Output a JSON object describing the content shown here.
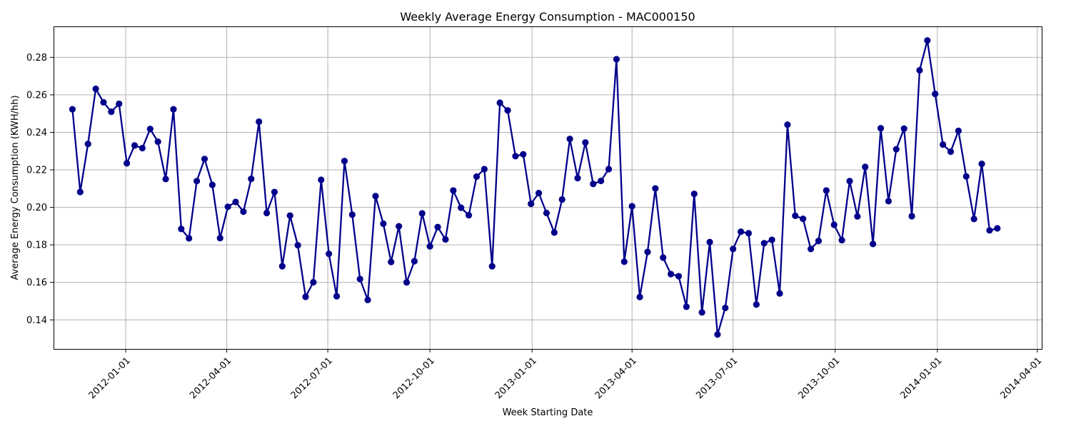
{
  "chart_data": {
    "type": "line",
    "title": "Weekly Average Energy Consumption - MAC000150",
    "xlabel": "Week Starting Date",
    "ylabel": "Average Energy Consumption (KWH/hh)",
    "grid": true,
    "x_tick_labels": [
      "2012-01-01",
      "2012-04-01",
      "2012-07-01",
      "2012-10-01",
      "2013-01-01",
      "2013-04-01",
      "2013-07-01",
      "2013-10-01",
      "2014-01-01",
      "2014-04-01"
    ],
    "y_ticks": [
      0.14,
      0.16,
      0.18,
      0.2,
      0.22,
      0.24,
      0.26,
      0.28
    ],
    "y_tick_labels": [
      "0.14",
      "0.16",
      "0.18",
      "0.20",
      "0.22",
      "0.24",
      "0.26",
      "0.28"
    ],
    "xlim": [
      "2011-10-28",
      "2014-04-05"
    ],
    "ylim": [
      0.1245,
      0.2965
    ],
    "colors": {
      "line": "#00008b",
      "marker": "#00008b"
    },
    "series": [
      {
        "x": [
          "2011-11-14",
          "2011-11-21",
          "2011-11-28",
          "2011-12-05",
          "2011-12-12",
          "2011-12-19",
          "2011-12-26",
          "2012-01-02",
          "2012-01-09",
          "2012-01-16",
          "2012-01-23",
          "2012-01-30",
          "2012-02-06",
          "2012-02-13",
          "2012-02-20",
          "2012-02-27",
          "2012-03-05",
          "2012-03-12",
          "2012-03-19",
          "2012-03-26",
          "2012-04-02",
          "2012-04-09",
          "2012-04-16",
          "2012-04-23",
          "2012-04-30",
          "2012-05-07",
          "2012-05-14",
          "2012-05-21",
          "2012-05-28",
          "2012-06-04",
          "2012-06-11",
          "2012-06-18",
          "2012-06-25",
          "2012-07-02",
          "2012-07-09",
          "2012-07-16",
          "2012-07-23",
          "2012-07-30",
          "2012-08-06",
          "2012-08-13",
          "2012-08-20",
          "2012-08-27",
          "2012-09-03",
          "2012-09-10",
          "2012-09-17",
          "2012-09-24",
          "2012-10-01",
          "2012-10-08",
          "2012-10-15",
          "2012-10-22",
          "2012-10-29",
          "2012-11-05",
          "2012-11-12",
          "2012-11-19",
          "2012-11-26",
          "2012-12-03",
          "2012-12-10",
          "2012-12-17",
          "2012-12-24",
          "2012-12-31",
          "2013-01-07",
          "2013-01-14",
          "2013-01-21",
          "2013-01-28",
          "2013-02-04",
          "2013-02-11",
          "2013-02-18",
          "2013-02-25",
          "2013-03-04",
          "2013-03-11",
          "2013-03-18",
          "2013-03-25",
          "2013-04-01",
          "2013-04-08",
          "2013-04-15",
          "2013-04-22",
          "2013-04-29",
          "2013-05-06",
          "2013-05-13",
          "2013-05-20",
          "2013-05-27",
          "2013-06-03",
          "2013-06-10",
          "2013-06-17",
          "2013-06-24",
          "2013-07-01",
          "2013-07-08",
          "2013-07-15",
          "2013-07-22",
          "2013-07-29",
          "2013-08-05",
          "2013-08-12",
          "2013-08-19",
          "2013-08-26",
          "2013-09-02",
          "2013-09-09",
          "2013-09-16",
          "2013-09-23",
          "2013-09-30",
          "2013-10-07",
          "2013-10-14",
          "2013-10-21",
          "2013-10-28",
          "2013-11-04",
          "2013-11-11",
          "2013-11-18",
          "2013-11-25",
          "2013-12-02",
          "2013-12-09",
          "2013-12-16",
          "2013-12-23",
          "2013-12-30",
          "2014-01-06",
          "2014-01-13",
          "2014-01-20",
          "2014-01-27",
          "2014-02-03",
          "2014-02-10",
          "2014-02-17",
          "2014-02-24"
        ],
        "y": [
          0.2523,
          0.2082,
          0.2338,
          0.2632,
          0.256,
          0.251,
          0.2552,
          0.2235,
          0.233,
          0.2316,
          0.2418,
          0.235,
          0.2151,
          0.2523,
          0.1885,
          0.1835,
          0.214,
          0.2258,
          0.212,
          0.1836,
          0.2003,
          0.2029,
          0.1977,
          0.2152,
          0.2457,
          0.197,
          0.2082,
          0.1686,
          0.1956,
          0.1798,
          0.1523,
          0.1601,
          0.2147,
          0.1752,
          0.1526,
          0.2247,
          0.1961,
          0.1618,
          0.1506,
          0.206,
          0.1913,
          0.1709,
          0.1899,
          0.16,
          0.1713,
          0.1968,
          0.1792,
          0.1895,
          0.1829,
          0.209,
          0.1998,
          0.1958,
          0.2164,
          0.2204,
          0.1686,
          0.2558,
          0.2517,
          0.2273,
          0.2283,
          0.2019,
          0.2076,
          0.197,
          0.1866,
          0.2042,
          0.2365,
          0.2156,
          0.2346,
          0.2125,
          0.2141,
          0.2204,
          0.279,
          0.171,
          0.2006,
          0.1522,
          0.1762,
          0.2101,
          0.1732,
          0.1644,
          0.1633,
          0.147,
          0.2072,
          0.144,
          0.1815,
          0.1322,
          0.1464,
          0.1778,
          0.187,
          0.1862,
          0.1482,
          0.1809,
          0.1827,
          0.1541,
          0.2441,
          0.1955,
          0.1939,
          0.1778,
          0.1821,
          0.209,
          0.1907,
          0.1825,
          0.214,
          0.1952,
          0.2216,
          0.1805,
          0.2422,
          0.2033,
          0.231,
          0.242,
          0.1953,
          0.2731,
          0.289,
          0.2605,
          0.2335,
          0.2297,
          0.2408,
          0.2165,
          0.1938,
          0.2232,
          0.1877,
          0.1888
        ]
      }
    ]
  }
}
